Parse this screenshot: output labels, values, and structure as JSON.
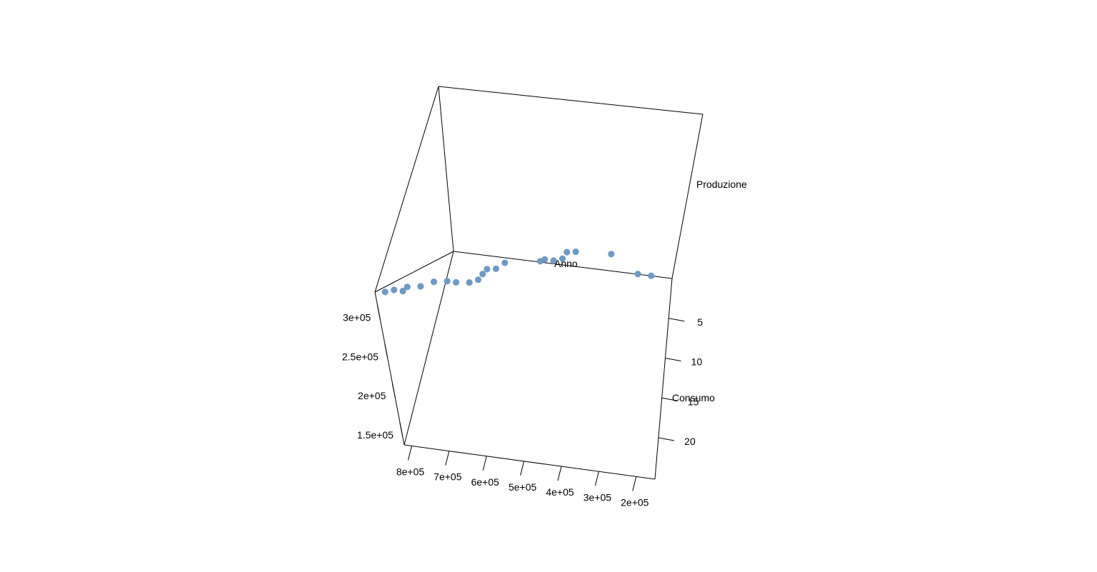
{
  "chart_data": {
    "type": "scatter",
    "title": "",
    "axes": {
      "consumo": {
        "label": "Consumo",
        "ticks": [
          "8e+05",
          "7e+05",
          "6e+05",
          "5e+05",
          "4e+05",
          "3e+05",
          "2e+05"
        ]
      },
      "produzione": {
        "label": "Produzione",
        "ticks": [
          "1.5e+05",
          "2e+05",
          "2.5e+05",
          "3e+05"
        ]
      },
      "anno": {
        "label": "Anno",
        "ticks": [
          "5",
          "10",
          "15",
          "20"
        ]
      }
    },
    "series": [
      {
        "color": "#6f9ac4",
        "points": [
          {
            "anno": 1,
            "consumo": 810000,
            "produzione": 310000
          },
          {
            "anno": 2,
            "consumo": 790000,
            "produzione": 312000
          },
          {
            "anno": 3,
            "consumo": 770000,
            "produzione": 310000
          },
          {
            "anno": 4,
            "consumo": 760000,
            "produzione": 315000
          },
          {
            "anno": 5,
            "consumo": 730000,
            "produzione": 315000
          },
          {
            "anno": 6,
            "consumo": 700000,
            "produzione": 320000
          },
          {
            "anno": 7,
            "consumo": 670000,
            "produzione": 320000
          },
          {
            "anno": 8,
            "consumo": 650000,
            "produzione": 318000
          },
          {
            "anno": 9,
            "consumo": 620000,
            "produzione": 317000
          },
          {
            "anno": 10,
            "consumo": 600000,
            "produzione": 320000
          },
          {
            "anno": 11,
            "consumo": 590000,
            "produzione": 327000
          },
          {
            "anno": 12,
            "consumo": 580000,
            "produzione": 333000
          },
          {
            "anno": 13,
            "consumo": 560000,
            "produzione": 333000
          },
          {
            "anno": 14,
            "consumo": 540000,
            "produzione": 340000
          },
          {
            "anno": 15,
            "consumo": 460000,
            "produzione": 340000
          },
          {
            "anno": 16,
            "consumo": 450000,
            "produzione": 342000
          },
          {
            "anno": 17,
            "consumo": 430000,
            "produzione": 340000
          },
          {
            "anno": 18,
            "consumo": 410000,
            "produzione": 342000
          },
          {
            "anno": 19,
            "consumo": 400000,
            "produzione": 350000
          },
          {
            "anno": 20,
            "consumo": 380000,
            "produzione": 350000
          },
          {
            "anno": 21,
            "consumo": 300000,
            "produzione": 345000
          },
          {
            "anno": 22,
            "consumo": 240000,
            "produzione": 318000
          },
          {
            "anno": 23,
            "consumo": 210000,
            "produzione": 315000
          }
        ]
      }
    ]
  }
}
